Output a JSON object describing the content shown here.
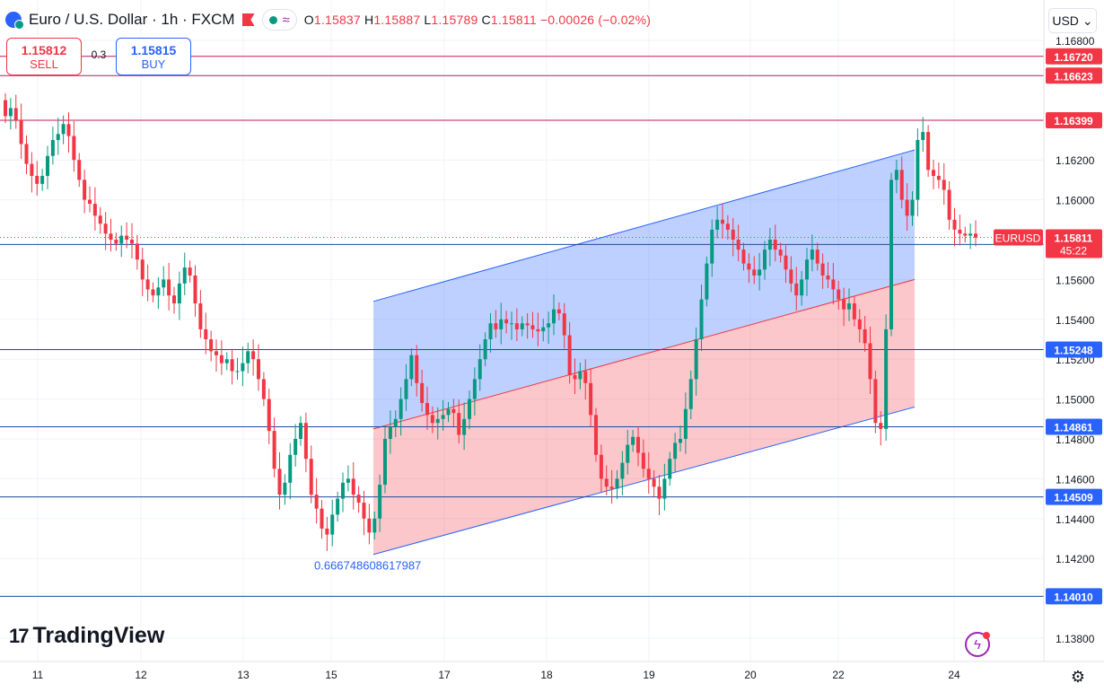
{
  "header": {
    "symbol_title": "Euro / U.S. Dollar · 1h · FXCM",
    "open_label": "O",
    "open": "1.15837",
    "high_label": "H",
    "high": "1.15887",
    "low_label": "L",
    "low": "1.15789",
    "close_label": "C",
    "close": "1.15811",
    "change": "−0.00026 (−0.02%)",
    "indicator_glyph": "≈"
  },
  "trade": {
    "sell_price": "1.15812",
    "sell_label": "SELL",
    "spread": "0.3",
    "buy_price": "1.15815",
    "buy_label": "BUY"
  },
  "currency": {
    "label": "USD",
    "chevron": "⌄"
  },
  "logo": {
    "text": "TradingView",
    "mark": "17"
  },
  "colors": {
    "up": "#089981",
    "down": "#f23645",
    "blue": "#2962ff",
    "resistance": "#c2185b",
    "support": "#1e4b9c"
  },
  "icons": [
    "ticker-icon",
    "flag-icon",
    "status-dot-icon",
    "lightning-icon",
    "settings-icon"
  ],
  "chart_data": {
    "type": "candlestick",
    "symbol": "EURUSD",
    "timeframe": "1h",
    "x_tick_labels": [
      "11",
      "12",
      "13",
      "15",
      "17",
      "18",
      "19",
      "20",
      "22",
      "24"
    ],
    "y_tick_labels": [
      "1.16800",
      "1.16200",
      "1.16000",
      "1.15600",
      "1.15400",
      "1.15200",
      "1.15000",
      "1.14800",
      "1.14600",
      "1.14400",
      "1.14200",
      "1.13800"
    ],
    "ylim": [
      1.1371,
      1.1689
    ],
    "horizontal_levels": [
      {
        "price": "1.16720",
        "color": "#f23645"
      },
      {
        "price": "1.16623",
        "color": "#f23645"
      },
      {
        "price": "1.16399",
        "color": "#f23645"
      },
      {
        "price": "1.15776",
        "color": "#2962ff"
      },
      {
        "price": "1.15248",
        "color": "#2962ff"
      },
      {
        "price": "1.14861",
        "color": "#2962ff"
      },
      {
        "price": "1.14509",
        "color": "#2962ff"
      },
      {
        "price": "1.14010",
        "color": "#2962ff"
      }
    ],
    "last_price": {
      "symbol": "EURUSD",
      "price": "1.15811",
      "countdown": "45:22"
    },
    "regression_channel": {
      "start_date": "15 (late)",
      "end_date": "23",
      "upper": [
        1.1549,
        1.1625
      ],
      "middle": [
        1.1485,
        1.156
      ],
      "lower": [
        1.1422,
        1.1496
      ],
      "label": "0.666748608617987"
    },
    "candles_close": [
      1.1642,
      1.1646,
      1.164,
      1.1628,
      1.1618,
      1.1612,
      1.1608,
      1.1612,
      1.1622,
      1.163,
      1.1633,
      1.1638,
      1.1632,
      1.162,
      1.161,
      1.16,
      1.1598,
      1.1592,
      1.1588,
      1.1583,
      1.158,
      1.1578,
      1.1582,
      1.158,
      1.1578,
      1.157,
      1.156,
      1.1555,
      1.1552,
      1.1556,
      1.156,
      1.1552,
      1.1548,
      1.1558,
      1.1566,
      1.1562,
      1.1548,
      1.1535,
      1.153,
      1.1524,
      1.1522,
      1.1518,
      1.152,
      1.1514,
      1.1514,
      1.1518,
      1.1524,
      1.152,
      1.151,
      1.15,
      1.1484,
      1.1465,
      1.1452,
      1.1458,
      1.1472,
      1.148,
      1.1488,
      1.147,
      1.1452,
      1.1445,
      1.1435,
      1.1432,
      1.1442,
      1.145,
      1.1458,
      1.146,
      1.1452,
      1.1448,
      1.144,
      1.1433,
      1.144,
      1.1457,
      1.148,
      1.1486,
      1.149,
      1.15,
      1.151,
      1.1522,
      1.1508,
      1.1498,
      1.1492,
      1.1488,
      1.149,
      1.1492,
      1.1495,
      1.1493,
      1.1482,
      1.149,
      1.15,
      1.151,
      1.152,
      1.153,
      1.1538,
      1.1535,
      1.154,
      1.1538,
      1.1538,
      1.1535,
      1.1538,
      1.1537,
      1.1535,
      1.1534,
      1.1536,
      1.1538,
      1.1545,
      1.1543,
      1.1532,
      1.1512,
      1.151,
      1.1514,
      1.1508,
      1.1492,
      1.1472,
      1.146,
      1.1456,
      1.1455,
      1.146,
      1.1468,
      1.1477,
      1.1481,
      1.1473,
      1.1465,
      1.146,
      1.1456,
      1.145,
      1.146,
      1.147,
      1.1478,
      1.148,
      1.1495,
      1.151,
      1.153,
      1.155,
      1.1568,
      1.1585,
      1.159,
      1.1588,
      1.1585,
      1.158,
      1.1575,
      1.1568,
      1.1565,
      1.1562,
      1.1565,
      1.1575,
      1.158,
      1.1575,
      1.1572,
      1.1565,
      1.1558,
      1.1552,
      1.156,
      1.157,
      1.1575,
      1.1568,
      1.1562,
      1.156,
      1.1555,
      1.155,
      1.1545,
      1.1548,
      1.154,
      1.1535,
      1.1528,
      1.151,
      1.1488,
      1.1485,
      1.1535,
      1.161,
      1.1615,
      1.16,
      1.1592,
      1.16,
      1.163,
      1.1634,
      1.1615,
      1.1612,
      1.161,
      1.1605,
      1.159,
      1.1585,
      1.1583,
      1.1582,
      1.1583,
      1.1581
    ]
  }
}
